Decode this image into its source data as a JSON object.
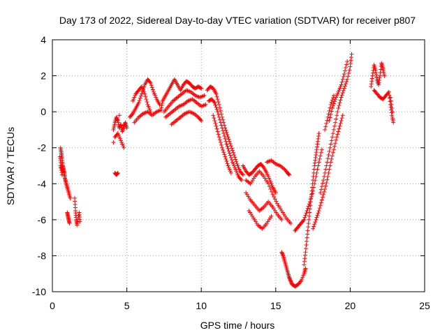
{
  "chart_data": {
    "type": "scatter",
    "title": "Day 173 of 2022, Sidereal Day-to-day VTEC variation (SDTVAR) for receiver p807",
    "xlabel": "GPS time / hours",
    "ylabel": "SDTVAR / TECUs",
    "xlim": [
      0,
      25
    ],
    "ylim": [
      -10,
      4
    ],
    "xticks": [
      0,
      5,
      10,
      15,
      20,
      25
    ],
    "yticks": [
      -10,
      -8,
      -6,
      -4,
      -2,
      0,
      2,
      4
    ],
    "xtick_labels": [
      "0",
      "5",
      "10",
      "15",
      "20",
      "25"
    ],
    "ytick_labels": [
      "-10",
      "-8",
      "-6",
      "-4",
      "-2",
      "0",
      "2",
      "4"
    ],
    "grid": true,
    "marker": "plus",
    "color": "#ff0000",
    "series": [
      {
        "points": [
          [
            0.55,
            -2.0
          ],
          [
            0.6,
            -2.3
          ],
          [
            0.65,
            -2.6
          ],
          [
            0.7,
            -3.0
          ],
          [
            0.75,
            -3.2
          ],
          [
            0.8,
            -3.4
          ],
          [
            0.85,
            -3.7
          ],
          [
            0.9,
            -3.9
          ],
          [
            1.0,
            -4.2
          ],
          [
            1.1,
            -4.5
          ],
          [
            1.2,
            -4.8
          ],
          [
            0.5,
            -2.5
          ],
          [
            0.6,
            -2.9
          ],
          [
            0.7,
            -3.3
          ],
          [
            0.55,
            -3.0
          ],
          [
            0.65,
            -3.5
          ],
          [
            1.0,
            -5.6
          ],
          [
            1.05,
            -5.8
          ],
          [
            1.1,
            -6.0
          ],
          [
            1.15,
            -6.2
          ],
          [
            1.5,
            -4.8
          ],
          [
            1.55,
            -5.5
          ],
          [
            1.6,
            -6.0
          ],
          [
            1.65,
            -6.3
          ],
          [
            1.8,
            -5.6
          ],
          [
            1.85,
            -6.1
          ],
          [
            4.2,
            -3.4
          ],
          [
            4.3,
            -3.5
          ],
          [
            4.4,
            -3.4
          ],
          [
            4.1,
            -1.0
          ],
          [
            4.2,
            -0.6
          ],
          [
            4.3,
            -0.3
          ],
          [
            4.4,
            -0.5
          ],
          [
            4.5,
            -0.9
          ],
          [
            4.6,
            -0.7
          ],
          [
            4.7,
            -1.1
          ],
          [
            4.8,
            -0.8
          ],
          [
            4.9,
            -0.6
          ],
          [
            5.0,
            -0.9
          ],
          [
            4.2,
            -1.4
          ],
          [
            4.4,
            -1.2
          ],
          [
            4.6,
            -1.6
          ],
          [
            4.8,
            -2.0
          ],
          [
            4.1,
            -1.7
          ],
          [
            4.5,
            -0.2
          ],
          [
            5.2,
            -0.3
          ],
          [
            5.4,
            -0.1
          ],
          [
            5.6,
            0.2
          ],
          [
            5.8,
            0.5
          ],
          [
            6.0,
            1.0
          ],
          [
            6.2,
            1.5
          ],
          [
            6.4,
            1.8
          ],
          [
            6.6,
            1.6
          ],
          [
            6.8,
            1.1
          ],
          [
            7.0,
            0.7
          ],
          [
            7.2,
            0.4
          ],
          [
            5.4,
            0.6
          ],
          [
            5.6,
            1.0
          ],
          [
            5.8,
            1.2
          ],
          [
            6.0,
            1.4
          ],
          [
            6.2,
            1.0
          ],
          [
            6.4,
            0.4
          ],
          [
            6.6,
            0.0
          ],
          [
            5.5,
            -0.6
          ],
          [
            5.8,
            -0.3
          ],
          [
            6.1,
            -0.1
          ],
          [
            6.4,
            0.0
          ],
          [
            6.7,
            -0.2
          ],
          [
            7.0,
            0.0
          ],
          [
            7.3,
            0.1
          ],
          [
            7.4,
            0.6
          ],
          [
            7.6,
            0.9
          ],
          [
            7.8,
            1.2
          ],
          [
            8.0,
            1.5
          ],
          [
            8.2,
            1.8
          ],
          [
            8.4,
            1.5
          ],
          [
            8.6,
            1.2
          ],
          [
            8.8,
            1.5
          ],
          [
            9.0,
            1.7
          ],
          [
            9.2,
            1.6
          ],
          [
            9.4,
            1.4
          ],
          [
            9.6,
            1.3
          ],
          [
            9.8,
            1.4
          ],
          [
            10.0,
            1.3
          ],
          [
            7.5,
            0.0
          ],
          [
            7.8,
            0.3
          ],
          [
            8.1,
            0.6
          ],
          [
            8.4,
            0.8
          ],
          [
            8.7,
            1.0
          ],
          [
            9.0,
            1.2
          ],
          [
            9.3,
            1.1
          ],
          [
            9.6,
            0.9
          ],
          [
            9.9,
            0.8
          ],
          [
            10.2,
            0.9
          ],
          [
            7.6,
            -0.3
          ],
          [
            7.9,
            -0.1
          ],
          [
            8.2,
            0.1
          ],
          [
            8.5,
            0.3
          ],
          [
            8.8,
            0.4
          ],
          [
            9.1,
            0.6
          ],
          [
            9.4,
            0.7
          ],
          [
            9.7,
            0.5
          ],
          [
            10.0,
            0.3
          ],
          [
            10.3,
            0.4
          ],
          [
            8.0,
            -0.7
          ],
          [
            8.3,
            -0.5
          ],
          [
            8.6,
            -0.3
          ],
          [
            8.9,
            -0.1
          ],
          [
            9.2,
            0.0
          ],
          [
            9.5,
            -0.1
          ],
          [
            9.8,
            -0.3
          ],
          [
            10.0,
            -0.5
          ],
          [
            10.4,
            1.2
          ],
          [
            10.6,
            1.4
          ],
          [
            10.8,
            1.3
          ],
          [
            11.0,
            1.0
          ],
          [
            11.2,
            0.4
          ],
          [
            11.4,
            -0.3
          ],
          [
            11.6,
            -0.9
          ],
          [
            11.8,
            -1.4
          ],
          [
            12.0,
            -1.9
          ],
          [
            12.2,
            -2.4
          ],
          [
            12.4,
            -2.9
          ],
          [
            12.6,
            -3.3
          ],
          [
            12.8,
            -3.5
          ],
          [
            10.5,
            0.6
          ],
          [
            10.7,
            0.7
          ],
          [
            10.9,
            0.5
          ],
          [
            11.1,
            0.0
          ],
          [
            11.3,
            -0.6
          ],
          [
            11.5,
            -1.2
          ],
          [
            11.7,
            -1.8
          ],
          [
            11.9,
            -2.3
          ],
          [
            12.1,
            -2.8
          ],
          [
            12.3,
            -3.2
          ],
          [
            12.5,
            -3.6
          ],
          [
            12.7,
            -3.8
          ],
          [
            10.8,
            -0.2
          ],
          [
            11.0,
            -0.8
          ],
          [
            11.2,
            -1.4
          ],
          [
            11.4,
            -2.0
          ],
          [
            11.6,
            -2.5
          ],
          [
            11.8,
            -3.0
          ],
          [
            12.0,
            -3.4
          ],
          [
            12.8,
            -3.0
          ],
          [
            13.0,
            -3.3
          ],
          [
            13.2,
            -3.5
          ],
          [
            13.4,
            -3.4
          ],
          [
            13.6,
            -3.2
          ],
          [
            13.8,
            -3.0
          ],
          [
            14.0,
            -2.9
          ],
          [
            14.2,
            -3.1
          ],
          [
            14.4,
            -3.4
          ],
          [
            14.6,
            -3.8
          ],
          [
            14.8,
            -4.2
          ],
          [
            15.0,
            -4.5
          ],
          [
            13.0,
            -3.8
          ],
          [
            13.3,
            -4.0
          ],
          [
            13.6,
            -3.6
          ],
          [
            13.9,
            -3.3
          ],
          [
            14.2,
            -3.6
          ],
          [
            14.5,
            -4.0
          ],
          [
            14.8,
            -4.6
          ],
          [
            15.1,
            -5.1
          ],
          [
            15.4,
            -5.5
          ],
          [
            15.7,
            -5.9
          ],
          [
            16.0,
            -6.2
          ],
          [
            13.0,
            -4.5
          ],
          [
            13.3,
            -4.9
          ],
          [
            13.6,
            -5.2
          ],
          [
            13.9,
            -5.5
          ],
          [
            14.2,
            -5.3
          ],
          [
            14.5,
            -5.0
          ],
          [
            14.8,
            -5.3
          ],
          [
            15.1,
            -5.7
          ],
          [
            15.4,
            -6.0
          ],
          [
            13.2,
            -5.5
          ],
          [
            13.5,
            -5.9
          ],
          [
            13.8,
            -6.3
          ],
          [
            14.1,
            -6.5
          ],
          [
            14.4,
            -6.2
          ],
          [
            14.7,
            -5.8
          ],
          [
            14.4,
            -2.8
          ],
          [
            14.7,
            -2.7
          ],
          [
            15.0,
            -2.9
          ],
          [
            15.3,
            -3.0
          ],
          [
            15.6,
            -3.2
          ],
          [
            15.8,
            -3.4
          ],
          [
            15.9,
            -3.5
          ],
          [
            15.4,
            -7.8
          ],
          [
            15.5,
            -8.0
          ],
          [
            15.6,
            -8.3
          ],
          [
            15.7,
            -8.6
          ],
          [
            15.8,
            -8.9
          ],
          [
            15.9,
            -9.2
          ],
          [
            16.0,
            -9.4
          ],
          [
            16.1,
            -9.6
          ],
          [
            16.3,
            -9.7
          ],
          [
            16.5,
            -9.6
          ],
          [
            16.7,
            -9.4
          ],
          [
            16.9,
            -9.0
          ],
          [
            17.0,
            -8.7
          ],
          [
            16.3,
            -6.6
          ],
          [
            16.5,
            -6.4
          ],
          [
            16.7,
            -6.2
          ],
          [
            16.9,
            -6.0
          ],
          [
            17.1,
            -5.5
          ],
          [
            17.3,
            -5.0
          ],
          [
            17.5,
            -4.4
          ],
          [
            17.7,
            -3.6
          ],
          [
            17.9,
            -2.8
          ],
          [
            18.1,
            -2.1
          ],
          [
            16.9,
            -8.5
          ],
          [
            17.0,
            -7.8
          ],
          [
            17.1,
            -7.0
          ],
          [
            17.2,
            -6.2
          ],
          [
            17.3,
            -5.4
          ],
          [
            17.4,
            -4.6
          ],
          [
            17.5,
            -3.8
          ],
          [
            17.6,
            -3.0
          ],
          [
            17.7,
            -2.4
          ],
          [
            17.8,
            -1.8
          ],
          [
            17.9,
            -1.2
          ],
          [
            17.5,
            -6.5
          ],
          [
            17.7,
            -6.0
          ],
          [
            17.9,
            -5.5
          ],
          [
            18.1,
            -4.9
          ],
          [
            18.3,
            -4.3
          ],
          [
            18.5,
            -3.6
          ],
          [
            18.7,
            -2.8
          ],
          [
            18.9,
            -2.1
          ],
          [
            19.1,
            -1.4
          ],
          [
            19.3,
            -0.8
          ],
          [
            19.5,
            -0.2
          ],
          [
            18.0,
            -4.5
          ],
          [
            18.2,
            -3.8
          ],
          [
            18.4,
            -3.0
          ],
          [
            18.6,
            -2.2
          ],
          [
            18.8,
            -1.4
          ],
          [
            19.0,
            -0.6
          ],
          [
            19.2,
            0.2
          ],
          [
            19.4,
            0.8
          ],
          [
            19.6,
            1.3
          ],
          [
            19.8,
            1.8
          ],
          [
            20.0,
            2.5
          ],
          [
            20.1,
            3.2
          ],
          [
            18.6,
            -0.5
          ],
          [
            18.8,
            0.2
          ],
          [
            19.0,
            0.7
          ],
          [
            19.2,
            1.1
          ],
          [
            19.4,
            1.5
          ],
          [
            19.6,
            2.1
          ],
          [
            19.8,
            2.8
          ],
          [
            18.3,
            -1.0
          ],
          [
            18.5,
            -0.3
          ],
          [
            18.7,
            0.4
          ],
          [
            18.9,
            0.9
          ],
          [
            21.4,
            1.4
          ],
          [
            21.5,
            2.0
          ],
          [
            21.6,
            2.6
          ],
          [
            21.7,
            2.3
          ],
          [
            21.8,
            1.8
          ],
          [
            21.9,
            1.5
          ],
          [
            22.0,
            2.0
          ],
          [
            22.1,
            2.7
          ],
          [
            22.2,
            2.4
          ],
          [
            22.3,
            2.0
          ],
          [
            21.6,
            1.2
          ],
          [
            21.8,
            1.0
          ],
          [
            22.0,
            0.8
          ],
          [
            22.2,
            0.7
          ],
          [
            22.4,
            0.9
          ],
          [
            22.6,
            1.1
          ],
          [
            22.7,
            0.4
          ],
          [
            22.8,
            -0.2
          ],
          [
            22.9,
            -0.6
          ],
          [
            22.7,
            0.8
          ],
          [
            22.85,
            0.0
          ]
        ]
      }
    ]
  }
}
